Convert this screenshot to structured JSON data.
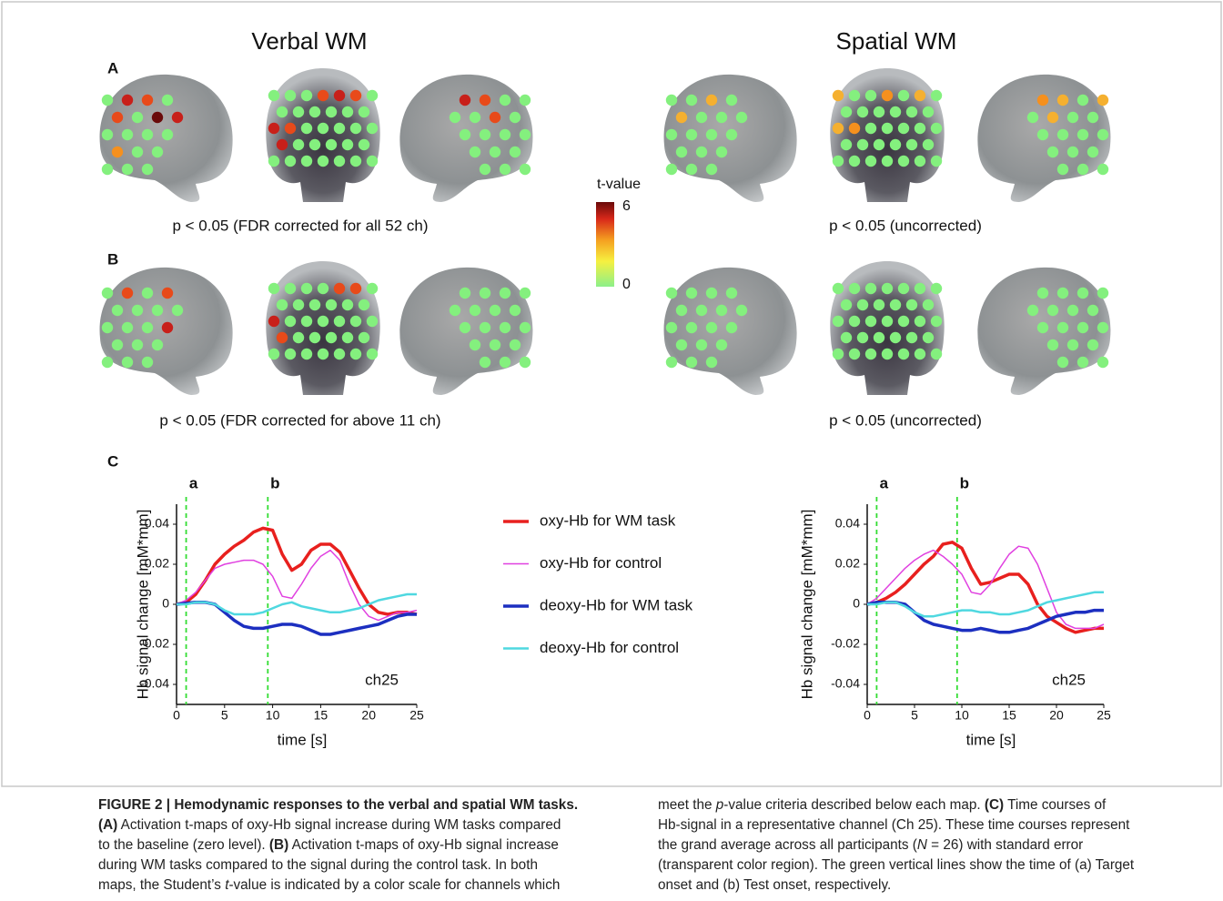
{
  "headings": {
    "verbal": "Verbal WM",
    "spatial": "Spatial WM"
  },
  "panels": {
    "a": "A",
    "b": "B",
    "c": "C"
  },
  "map_captions": {
    "a_verbal": "p < 0.05 (FDR corrected for all 52 ch)",
    "a_spatial": "p < 0.05 (uncorrected)",
    "b_verbal": "p < 0.05 (FDR corrected for above 11 ch)",
    "b_spatial": "p < 0.05 (uncorrected)"
  },
  "colorbar": {
    "title": "t-value",
    "max": 6,
    "min": 0
  },
  "chart_data": [
    {
      "type": "line",
      "ylabel": "Hb signal change [mM*mm]",
      "xlabel": "time [s]",
      "annotation": "ch25",
      "markers": [
        {
          "x": 1,
          "label": "a"
        },
        {
          "x": 9.5,
          "label": "b"
        }
      ],
      "xlim": [
        0,
        25
      ],
      "xticks": [
        0,
        5,
        10,
        15,
        20,
        25
      ],
      "ylim": [
        -0.05,
        0.05
      ],
      "yticks": [
        -0.04,
        -0.02,
        0,
        0.02,
        0.04
      ],
      "grid": false,
      "x": [
        0,
        1,
        2,
        3,
        4,
        5,
        6,
        7,
        8,
        9,
        10,
        11,
        12,
        13,
        14,
        15,
        16,
        17,
        18,
        19,
        20,
        21,
        22,
        23,
        24,
        25
      ],
      "series": [
        {
          "name": "oxy-Hb for WM task",
          "color": "#e8201e",
          "width": 3.5,
          "values": [
            0,
            0.001,
            0.005,
            0.012,
            0.02,
            0.025,
            0.029,
            0.032,
            0.036,
            0.038,
            0.037,
            0.025,
            0.017,
            0.02,
            0.027,
            0.03,
            0.03,
            0.026,
            0.017,
            0.008,
            0,
            -0.004,
            -0.005,
            -0.004,
            -0.004,
            -0.005
          ]
        },
        {
          "name": "oxy-Hb for control",
          "color": "#e040e0",
          "width": 1.5,
          "values": [
            0,
            0.002,
            0.006,
            0.012,
            0.018,
            0.02,
            0.021,
            0.022,
            0.022,
            0.02,
            0.014,
            0.004,
            0.003,
            0.01,
            0.018,
            0.024,
            0.027,
            0.022,
            0.01,
            0,
            -0.006,
            -0.008,
            -0.006,
            -0.004,
            -0.004,
            -0.003
          ]
        },
        {
          "name": "deoxy-Hb for WM task",
          "color": "#1c2fc0",
          "width": 3.5,
          "values": [
            0,
            0.0005,
            0.001,
            0.001,
            0,
            -0.004,
            -0.008,
            -0.011,
            -0.012,
            -0.012,
            -0.011,
            -0.01,
            -0.01,
            -0.011,
            -0.013,
            -0.015,
            -0.015,
            -0.014,
            -0.013,
            -0.012,
            -0.011,
            -0.01,
            -0.008,
            -0.006,
            -0.005,
            -0.005
          ]
        },
        {
          "name": "deoxy-Hb for control",
          "color": "#4fd8e0",
          "width": 2.5,
          "values": [
            0,
            0,
            0.001,
            0.001,
            0,
            -0.003,
            -0.005,
            -0.005,
            -0.005,
            -0.004,
            -0.002,
            0,
            0.001,
            -0.001,
            -0.002,
            -0.003,
            -0.004,
            -0.004,
            -0.003,
            -0.002,
            0,
            0.002,
            0.003,
            0.004,
            0.005,
            0.005
          ]
        }
      ]
    },
    {
      "type": "line",
      "ylabel": "Hb signal change [mM*mm]",
      "xlabel": "time [s]",
      "annotation": "ch25",
      "markers": [
        {
          "x": 1,
          "label": "a"
        },
        {
          "x": 9.5,
          "label": "b"
        }
      ],
      "xlim": [
        0,
        25
      ],
      "xticks": [
        0,
        5,
        10,
        15,
        20,
        25
      ],
      "ylim": [
        -0.05,
        0.05
      ],
      "yticks": [
        -0.04,
        -0.02,
        0,
        0.02,
        0.04
      ],
      "grid": false,
      "x": [
        0,
        1,
        2,
        3,
        4,
        5,
        6,
        7,
        8,
        9,
        10,
        11,
        12,
        13,
        14,
        15,
        16,
        17,
        18,
        19,
        20,
        21,
        22,
        23,
        24,
        25
      ],
      "series": [
        {
          "color": "#e8201e",
          "width": 3.5,
          "values": [
            0,
            0.001,
            0.003,
            0.006,
            0.01,
            0.015,
            0.02,
            0.024,
            0.03,
            0.031,
            0.028,
            0.018,
            0.01,
            0.011,
            0.013,
            0.015,
            0.015,
            0.01,
            0,
            -0.006,
            -0.009,
            -0.012,
            -0.014,
            -0.013,
            -0.012,
            -0.012
          ]
        },
        {
          "color": "#e040e0",
          "width": 1.5,
          "values": [
            0,
            0.003,
            0.008,
            0.013,
            0.018,
            0.022,
            0.025,
            0.027,
            0.024,
            0.02,
            0.015,
            0.006,
            0.005,
            0.01,
            0.018,
            0.025,
            0.029,
            0.028,
            0.02,
            0.008,
            -0.004,
            -0.01,
            -0.012,
            -0.012,
            -0.012,
            -0.01
          ]
        },
        {
          "color": "#1c2fc0",
          "width": 3.5,
          "values": [
            0,
            0.001,
            0.001,
            0.001,
            0,
            -0.004,
            -0.008,
            -0.01,
            -0.011,
            -0.012,
            -0.013,
            -0.013,
            -0.012,
            -0.013,
            -0.014,
            -0.014,
            -0.013,
            -0.012,
            -0.01,
            -0.008,
            -0.006,
            -0.005,
            -0.004,
            -0.004,
            -0.003,
            -0.003
          ]
        },
        {
          "color": "#4fd8e0",
          "width": 2.5,
          "values": [
            0,
            0,
            0.001,
            0.001,
            -0.001,
            -0.004,
            -0.006,
            -0.006,
            -0.005,
            -0.004,
            -0.003,
            -0.003,
            -0.004,
            -0.004,
            -0.005,
            -0.005,
            -0.004,
            -0.003,
            -0.001,
            0.001,
            0.002,
            0.003,
            0.004,
            0.005,
            0.006,
            0.006
          ]
        }
      ]
    }
  ],
  "caption": {
    "left": [
      [
        {
          "text": "FIGURE 2 | Hemodynamic responses to the verbal and spatial WM tasks.",
          "style": "bold"
        }
      ],
      [
        {
          "text": "(A)",
          "style": "bold"
        },
        " Activation t-maps of oxy-Hb signal increase during WM tasks compared"
      ],
      [
        "to the baseline (zero level). ",
        {
          "text": "(B)",
          "style": "bold"
        },
        " Activation t-maps of oxy-Hb signal increase"
      ],
      [
        "during WM tasks compared to the signal during the control task. In both"
      ],
      [
        "maps, the Student’s ",
        {
          "text": "t",
          "style": "italic"
        },
        "-value is indicated by a color scale for channels which"
      ]
    ],
    "right": [
      [
        "meet the ",
        {
          "text": "p",
          "style": "italic"
        },
        "-value criteria described below each map. ",
        {
          "text": "(C)",
          "style": "bold"
        },
        " Time courses of"
      ],
      [
        "Hb-signal in a representative channel (Ch 25). These time courses represent"
      ],
      [
        "the grand average across all participants (",
        {
          "text": "N",
          "style": "italic"
        },
        " = 26) with standard error"
      ],
      [
        "(transparent color region). The green vertical lines show the time of (a) Target"
      ],
      [
        "onset and (b) Test onset, respectively."
      ]
    ]
  }
}
